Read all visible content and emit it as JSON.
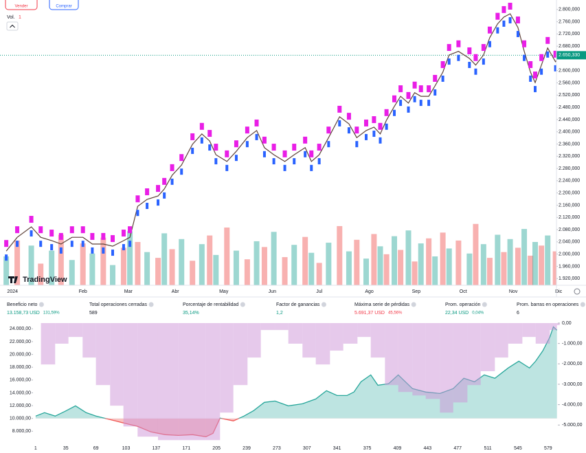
{
  "toolbar": {
    "sell": "Vender",
    "buy": "Comprar",
    "volume_label": "Vol.",
    "volume_value": "1"
  },
  "brand": "TradingView",
  "chart_data": [
    {
      "type": "line",
      "x": [
        4,
        11,
        20,
        26,
        33,
        39,
        46,
        53,
        59,
        66,
        72,
        79,
        83,
        88,
        94,
        101,
        105,
        110,
        116,
        123,
        129,
        134,
        138,
        145,
        151,
        158,
        164,
        169,
        175,
        182,
        188,
        195,
        199,
        204,
        210,
        217,
        223,
        228,
        234,
        239,
        243,
        247,
        252,
        256,
        261,
        265,
        269,
        274,
        278,
        283,
        287,
        293,
        300,
        304,
        309,
        313,
        318,
        322,
        326,
        331,
        335,
        339,
        342,
        346,
        350,
        355,
        358
      ],
      "series": [
        {
          "color": "#e91ee6",
          "values": [
            2010000,
            2055000,
            2089000,
            2055000,
            2044000,
            2033000,
            2055000,
            2055000,
            2033000,
            2033000,
            2026000,
            2044000,
            2055000,
            2156000,
            2179000,
            2190000,
            2213000,
            2258000,
            2291000,
            2359000,
            2393000,
            2370000,
            2325000,
            2303000,
            2336000,
            2381000,
            2404000,
            2348000,
            2325000,
            2303000,
            2325000,
            2348000,
            2303000,
            2325000,
            2381000,
            2449000,
            2426000,
            2381000,
            2404000,
            2415000,
            2393000,
            2438000,
            2483000,
            2516000,
            2494000,
            2528000,
            2516000,
            2516000,
            2550000,
            2595000,
            2651000,
            2663000,
            2640000,
            2618000,
            2651000,
            2708000,
            2753000,
            2775000,
            2786000,
            2741000,
            2663000,
            2595000,
            2561000,
            2618000,
            2674000,
            2629000,
            2651000
          ]
        }
      ],
      "buy_color": "#2962ff",
      "line_color": "#5d4037",
      "volume": {
        "values": [
          40,
          62,
          55,
          30,
          48,
          70,
          35,
          58,
          44,
          66,
          28,
          52,
          75,
          60,
          46,
          38,
          72,
          50,
          64,
          34,
          57,
          69,
          42,
          80,
          48,
          36,
          61,
          53,
          74,
          39,
          56,
          67,
          45,
          31,
          59,
          82,
          47,
          63,
          37,
          71,
          54,
          43,
          68,
          49,
          76,
          33,
          58,
          65,
          40,
          73,
          51,
          62,
          44,
          85,
          57,
          38,
          70,
          46,
          64,
          52,
          78,
          41,
          60,
          55,
          69,
          47,
          50
        ],
        "ylim": [
          0,
          100
        ],
        "colors": [
          "#26a69a",
          "#ef5350"
        ]
      },
      "xlim": [
        0,
        360
      ],
      "xticks": [
        {
          "value": 8,
          "label": "2024"
        },
        {
          "value": 53,
          "label": "Feb"
        },
        {
          "value": 82,
          "label": "Mar"
        },
        {
          "value": 112,
          "label": "Abr"
        },
        {
          "value": 143,
          "label": "May"
        },
        {
          "value": 174,
          "label": "Jun"
        },
        {
          "value": 204,
          "label": "Jul"
        },
        {
          "value": 236,
          "label": "Ago"
        },
        {
          "value": 266,
          "label": "Sep"
        },
        {
          "value": 296,
          "label": "Oct"
        },
        {
          "value": 328,
          "label": "Nov"
        },
        {
          "value": 357,
          "label": "Dic"
        }
      ],
      "ylim": [
        1898000,
        2831000
      ],
      "yticks": [
        {
          "value": 2800000,
          "label": "2.800,000"
        },
        {
          "value": 2760000,
          "label": "2.760,000"
        },
        {
          "value": 2720000,
          "label": "2.720,000"
        },
        {
          "value": 2680000,
          "label": "2.680,000"
        },
        {
          "value": 2600000,
          "label": "2.600,000"
        },
        {
          "value": 2560000,
          "label": "2.560,000"
        },
        {
          "value": 2520000,
          "label": "2.520,000"
        },
        {
          "value": 2480000,
          "label": "2.480,000"
        },
        {
          "value": 2440000,
          "label": "2.440,000"
        },
        {
          "value": 2400000,
          "label": "2.400,000"
        },
        {
          "value": 2360000,
          "label": "2.360,000"
        },
        {
          "value": 2320000,
          "label": "2.320,000"
        },
        {
          "value": 2280000,
          "label": "2.280,000"
        },
        {
          "value": 2240000,
          "label": "2.240,000"
        },
        {
          "value": 2200000,
          "label": "2.200,000"
        },
        {
          "value": 2160000,
          "label": "2.160,000"
        },
        {
          "value": 2120000,
          "label": "2.120,000"
        },
        {
          "value": 2080000,
          "label": "2.080,000"
        },
        {
          "value": 2040000,
          "label": "2.040,000"
        },
        {
          "value": 2000000,
          "label": "2.000,000"
        },
        {
          "value": 1960000,
          "label": "1.960,000"
        },
        {
          "value": 1920000,
          "label": "1.920,000"
        }
      ],
      "last_price": {
        "value": 2650330,
        "label": "2.650,330",
        "color": "#089981"
      }
    },
    {
      "type": "area",
      "x": [
        1,
        11,
        23,
        34,
        46,
        58,
        69,
        85,
        100,
        116,
        131,
        147,
        162,
        178,
        193,
        201,
        209,
        224,
        236,
        247,
        259,
        271,
        286,
        302,
        317,
        329,
        341,
        352,
        360,
        368,
        379,
        387,
        399,
        410,
        426,
        441,
        457,
        472,
        484,
        496,
        507,
        519,
        534,
        546,
        558,
        565,
        573,
        581,
        585,
        589
      ],
      "baseline": 10000,
      "series": [
        {
          "color": "#26a69a",
          "below_color": "#ef5350",
          "values": [
            10360,
            10900,
            10360,
            11110,
            11970,
            10900,
            10360,
            9820,
            9290,
            8750,
            7890,
            7460,
            7350,
            7460,
            7140,
            7670,
            10040,
            9610,
            10360,
            11220,
            12510,
            12720,
            11970,
            12290,
            13040,
            14330,
            13580,
            13580,
            14120,
            15730,
            16800,
            15190,
            15410,
            16800,
            14660,
            14120,
            13900,
            14660,
            16270,
            15730,
            16800,
            16270,
            17880,
            18950,
            17880,
            18950,
            20560,
            22710,
            24320,
            23790
          ]
        },
        {
          "axis": "y2",
          "color": "#ce93d8",
          "x": [
            7,
            23,
            38,
            54,
            69,
            85,
            100,
            116,
            139,
            162,
            193,
            209,
            224,
            240,
            255,
            271,
            286,
            302,
            317,
            333,
            348,
            364,
            379,
            395,
            410,
            426,
            441,
            457,
            472,
            488,
            503,
            519,
            534,
            550,
            565,
            581,
            589
          ],
          "values": [
            -2030,
            -1010,
            -680,
            -1690,
            -3040,
            -4050,
            -5070,
            -5570,
            -5740,
            -5740,
            -5740,
            -4390,
            -3040,
            -1690,
            -340,
            -340,
            -1010,
            -1690,
            -2030,
            -1350,
            -1010,
            -680,
            -1690,
            -3040,
            -3380,
            -3550,
            -3720,
            -4390,
            -3890,
            -3040,
            -2360,
            -1690,
            -1010,
            -680,
            -1010,
            -340,
            -100
          ]
        }
      ],
      "xlim": [
        -2,
        590
      ],
      "xticks": [
        1,
        35,
        69,
        103,
        137,
        171,
        205,
        239,
        273,
        307,
        341,
        375,
        409,
        443,
        477,
        511,
        545,
        579
      ],
      "ylim": [
        6100,
        24900
      ],
      "yticks": [
        {
          "value": 24000,
          "label": "24.000,00"
        },
        {
          "value": 22000,
          "label": "22.000,00"
        },
        {
          "value": 20000,
          "label": "20.000,00"
        },
        {
          "value": 18000,
          "label": "18.000,00"
        },
        {
          "value": 16000,
          "label": "16.000,00"
        },
        {
          "value": 14000,
          "label": "14.000,00"
        },
        {
          "value": 12000,
          "label": "12.000,00"
        },
        {
          "value": 10000,
          "label": "10.000,00"
        },
        {
          "value": 8000,
          "label": "8.000,00"
        }
      ],
      "y2lim": [
        -5900,
        0
      ],
      "y2ticks": [
        {
          "value": 0,
          "label": "0,00"
        },
        {
          "value": -1000,
          "label": "-1.000,00"
        },
        {
          "value": -2000,
          "label": "-2.000,00"
        },
        {
          "value": -3000,
          "label": "-3.000,00"
        },
        {
          "value": -4000,
          "label": "-4.000,00"
        },
        {
          "value": -5000,
          "label": "-5.000,00"
        }
      ]
    }
  ],
  "stats": [
    {
      "label": "Beneficio neto",
      "value": "13.158,73 USD",
      "extra": "131,59%",
      "tone": "#089981"
    },
    {
      "label": "Total operaciones cerradas",
      "value": "589",
      "tone": "#131722"
    },
    {
      "label": "Porcentaje de rentabilidad",
      "value": "35,14%",
      "tone": "#089981"
    },
    {
      "label": "Factor de ganancias",
      "value": "1,2",
      "tone": "#089981"
    },
    {
      "label": "Máxima serie de pérdidas",
      "value": "5.691,37 USD",
      "extra": "45,56%",
      "tone": "#f23645"
    },
    {
      "label": "Prom. operación",
      "value": "22,34 USD",
      "extra": "0,04%",
      "tone": "#089981"
    },
    {
      "label": "Prom. barras en operaciones",
      "value": "6",
      "tone": "#131722"
    }
  ]
}
